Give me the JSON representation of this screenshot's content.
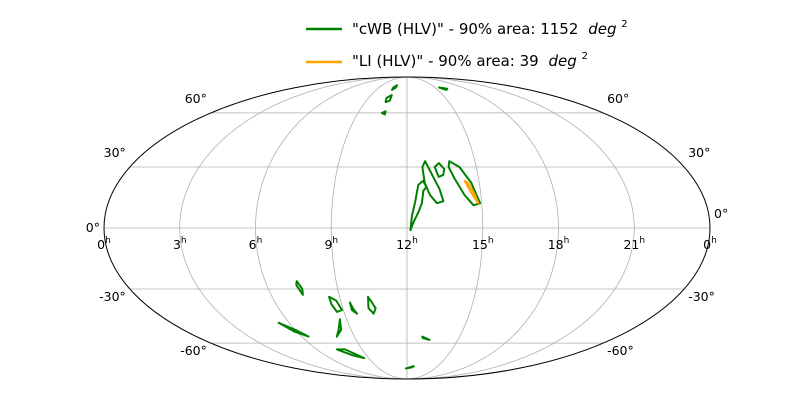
{
  "chart_data": {
    "type": "line",
    "projection": "mollweide",
    "grid": true,
    "legend_position": "top-right",
    "ra_ticks": [
      "0",
      "21",
      "18",
      "15",
      "12",
      "9",
      "6",
      "3",
      "0"
    ],
    "ra_tick_suffix": "h",
    "dec_ticks_left": [
      "60°",
      "30°",
      "0°",
      "-30°",
      "-60°"
    ],
    "dec_ticks_right": [
      "60°",
      "30°",
      "0°",
      "-30°",
      "-60°"
    ],
    "series": [
      {
        "name": "\"cWB (HLV)\" - 90% area: 1152",
        "unit": "deg",
        "unit_power": "2",
        "color": "#008000",
        "contours": [
          [
            [
              -44,
              12
            ],
            [
              -40,
              22
            ],
            [
              -34,
              30
            ],
            [
              -28,
              33
            ],
            [
              -27,
              30
            ],
            [
              -30,
              24
            ],
            [
              -35,
              16
            ],
            [
              -40,
              11
            ],
            [
              -44,
              12
            ]
          ],
          [
            [
              -24,
              29
            ],
            [
              -21,
              32
            ],
            [
              -18,
              30
            ],
            [
              -20,
              25
            ],
            [
              -23,
              26
            ],
            [
              -24,
              29
            ]
          ],
          [
            [
              -22,
              13
            ],
            [
              -20,
              19
            ],
            [
              -16,
              26
            ],
            [
              -12,
              33
            ],
            [
              -10,
              30
            ],
            [
              -11,
              22
            ],
            [
              -14,
              16
            ],
            [
              -18,
              12
            ],
            [
              -22,
              13
            ]
          ],
          [
            [
              -10,
              18
            ],
            [
              -9,
              12
            ],
            [
              -7,
              8
            ],
            [
              -4,
              3
            ],
            [
              -2,
              -1
            ],
            [
              -3,
              6
            ],
            [
              -5,
              13
            ],
            [
              -7,
              21
            ],
            [
              -10,
              23
            ],
            [
              -12,
              20
            ],
            [
              -10,
              18
            ]
          ],
          [
            [
              18,
              80
            ],
            [
              22,
              78
            ],
            [
              22,
              76
            ],
            [
              18,
              78
            ],
            [
              18,
              80
            ]
          ],
          [
            [
              19,
              72
            ],
            [
              24,
              70
            ],
            [
              23,
              67
            ],
            [
              19,
              68
            ],
            [
              19,
              72
            ]
          ],
          [
            [
              20,
              61
            ],
            [
              23,
              60
            ],
            [
              20,
              59
            ],
            [
              20,
              61
            ]
          ],
          [
            [
              -52,
              78
            ],
            [
              -62,
              77
            ],
            [
              -58,
              76
            ],
            [
              -52,
              78
            ]
          ],
          [
            [
              60,
              -56
            ],
            [
              55,
              -52
            ],
            [
              50,
              -46
            ],
            [
              53,
              -52
            ],
            [
              60,
              -56
            ]
          ],
          [
            [
              -13,
              -56
            ],
            [
              -20,
              -58
            ],
            [
              -14,
              -57
            ],
            [
              -13,
              -56
            ]
          ],
          [
            [
              2,
              -78
            ],
            [
              -8,
              -77
            ],
            [
              -10,
              -76
            ],
            [
              2,
              -78
            ]
          ],
          [
            [
              26,
              -34
            ],
            [
              24,
              -37
            ],
            [
              22,
              -40
            ],
            [
              24,
              -43
            ],
            [
              27,
              -40
            ],
            [
              26,
              -34
            ]
          ],
          [
            [
              39,
              -37
            ],
            [
              38,
              -40
            ],
            [
              36,
              -43
            ],
            [
              39,
              -41
            ],
            [
              39,
              -37
            ]
          ],
          [
            [
              52,
              -34
            ],
            [
              48,
              -36
            ],
            [
              46,
              -41
            ],
            [
              50,
              -42
            ],
            [
              52,
              -38
            ],
            [
              52,
              -34
            ]
          ],
          [
            [
              70,
              -26
            ],
            [
              68,
              -30
            ],
            [
              69,
              -33
            ],
            [
              71,
              -28
            ],
            [
              70,
              -26
            ]
          ],
          [
            [
              98,
              -48
            ],
            [
              90,
              -52
            ],
            [
              84,
              -56
            ],
            [
              92,
              -53
            ],
            [
              98,
              -48
            ]
          ],
          [
            [
              70,
              -64
            ],
            [
              62,
              -64
            ],
            [
              50,
              -70
            ],
            [
              60,
              -68
            ],
            [
              70,
              -64
            ]
          ]
        ]
      },
      {
        "name": "\"LI (HLV)\" - 90% area: 39",
        "unit": "deg",
        "unit_power": "2",
        "color": "#ffa500",
        "contours": [
          [
            [
              -43,
              12
            ],
            [
              -40,
              16
            ],
            [
              -36,
              23
            ],
            [
              -38,
              22
            ],
            [
              -41,
              17
            ],
            [
              -43,
              12
            ]
          ]
        ]
      }
    ]
  }
}
